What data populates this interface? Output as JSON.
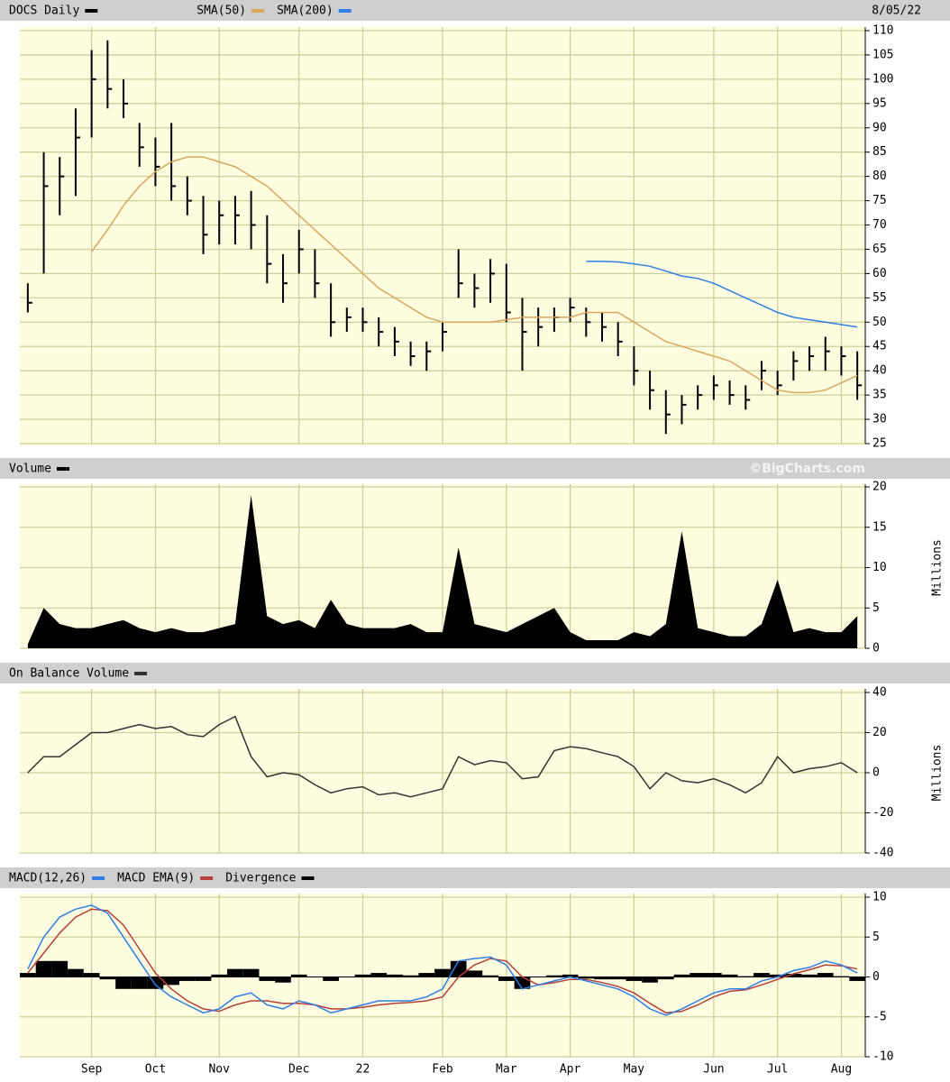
{
  "chart_data": [
    {
      "type": "ohlc",
      "date": "8/05/22",
      "series": [
        {
          "name": "DOCS Daily",
          "color": "#000000",
          "high": [
            58,
            85,
            84,
            94,
            106,
            108,
            100,
            91,
            88,
            91,
            80,
            76,
            75,
            76,
            77,
            72,
            64,
            69,
            65,
            58,
            53,
            53,
            51,
            49,
            46,
            46,
            50,
            65,
            60,
            63,
            62,
            55,
            53,
            53,
            55,
            53,
            52,
            50,
            45,
            40,
            36,
            35,
            37,
            39,
            38,
            37,
            42,
            40,
            44,
            45,
            47,
            45,
            44
          ],
          "low": [
            52,
            60,
            72,
            76,
            88,
            94,
            92,
            82,
            78,
            75,
            72,
            64,
            66,
            66,
            65,
            58,
            54,
            60,
            55,
            47,
            48,
            48,
            45,
            43,
            41,
            40,
            44,
            55,
            53,
            54,
            50,
            40,
            45,
            48,
            50,
            47,
            46,
            43,
            37,
            32,
            27,
            29,
            32,
            34,
            33,
            32,
            36,
            35,
            38,
            40,
            40,
            39,
            34
          ],
          "close": [
            54,
            78,
            80,
            88,
            100,
            98,
            95,
            86,
            82,
            78,
            75,
            68,
            72,
            72,
            70,
            62,
            58,
            65,
            58,
            50,
            51,
            50,
            48,
            46,
            43,
            44,
            48,
            58,
            57,
            60,
            52,
            48,
            49,
            51,
            53,
            50,
            49,
            46,
            40,
            36,
            31,
            33,
            35,
            37,
            35,
            34,
            40,
            37,
            42,
            43,
            44,
            43,
            37
          ]
        },
        {
          "name": "SMA(50)",
          "color": "#d9a65a",
          "values": [
            null,
            null,
            null,
            null,
            64.5,
            69,
            74,
            78,
            81,
            83,
            84,
            84,
            83,
            82,
            80,
            78,
            75,
            72,
            69,
            66,
            63,
            60,
            57,
            55,
            53,
            51,
            50,
            50,
            50,
            50,
            50.5,
            51,
            51,
            51,
            51,
            52,
            52,
            52,
            50,
            48,
            46,
            45,
            44,
            43,
            42,
            40,
            38,
            36,
            35.5,
            35.5,
            36,
            37.5,
            39
          ]
        },
        {
          "name": "SMA(200)",
          "color": "#2f7ee6",
          "values": [
            null,
            null,
            null,
            null,
            null,
            null,
            null,
            null,
            null,
            null,
            null,
            null,
            null,
            null,
            null,
            null,
            null,
            null,
            null,
            null,
            null,
            null,
            null,
            null,
            null,
            null,
            null,
            null,
            null,
            null,
            null,
            null,
            null,
            null,
            null,
            62.5,
            62.5,
            62.4,
            62,
            61.5,
            60.5,
            59.5,
            59,
            58,
            56.5,
            55,
            53.5,
            52,
            51,
            50.5,
            50,
            49.5,
            49
          ]
        }
      ],
      "ylim": [
        25,
        110
      ],
      "yticks": [
        25,
        30,
        35,
        40,
        45,
        50,
        55,
        60,
        65,
        70,
        75,
        80,
        85,
        90,
        95,
        100,
        105,
        110
      ],
      "grid": true
    },
    {
      "type": "area",
      "annotation": "©BigCharts.com",
      "y_label": "Millions",
      "series": [
        {
          "name": "Volume",
          "color": "#000000",
          "values": [
            0.5,
            5,
            3,
            2.5,
            2.5,
            3,
            3.5,
            2.5,
            2,
            2.5,
            2,
            2,
            2.5,
            3,
            19,
            4,
            3,
            3.5,
            2.5,
            6,
            3,
            2.5,
            2.5,
            2.5,
            3,
            2,
            2,
            12.5,
            3,
            2.5,
            2,
            3,
            4,
            5,
            2,
            1,
            1,
            1,
            2,
            1.5,
            3,
            14.5,
            2.5,
            2,
            1.5,
            1.5,
            3,
            8.5,
            2,
            2.5,
            2,
            2,
            4
          ]
        }
      ],
      "ylim": [
        0,
        20
      ],
      "yticks": [
        0,
        5,
        10,
        15,
        20
      ],
      "grid": true
    },
    {
      "type": "line",
      "y_label": "Millions",
      "series": [
        {
          "name": "On Balance Volume",
          "color": "#333333",
          "values": [
            0,
            8,
            8,
            14,
            20,
            20,
            22,
            24,
            22,
            23,
            19,
            18,
            24,
            28,
            8,
            -2,
            0,
            -1,
            -6,
            -10,
            -8,
            -7,
            -11,
            -10,
            -12,
            -10,
            -8,
            8,
            4,
            6,
            5,
            -3,
            -2,
            11,
            13,
            12,
            10,
            8,
            3,
            -8,
            0,
            -4,
            -5,
            -3,
            -6,
            -10,
            -5,
            8,
            0,
            2,
            3,
            5,
            0
          ]
        }
      ],
      "ylim": [
        -40,
        40
      ],
      "yticks": [
        -40,
        -20,
        0,
        20,
        40
      ],
      "grid": true
    },
    {
      "type": "macd",
      "categories": [
        null,
        null,
        null,
        null,
        "Sep",
        null,
        null,
        null,
        "Oct",
        null,
        null,
        null,
        "Nov",
        null,
        null,
        null,
        null,
        "Dec",
        null,
        null,
        null,
        "22",
        null,
        null,
        null,
        null,
        "Feb",
        null,
        null,
        null,
        "Mar",
        null,
        null,
        null,
        "Apr",
        null,
        null,
        null,
        "May",
        null,
        null,
        null,
        null,
        "Jun",
        null,
        null,
        null,
        "Jul",
        null,
        null,
        null,
        "Aug",
        null
      ],
      "series": [
        {
          "name": "MACD(12,26)",
          "color": "#2f7ee6",
          "values": [
            1,
            5,
            7.5,
            8.5,
            9,
            8,
            5,
            2,
            -1,
            -2.5,
            -3.5,
            -4.5,
            -4,
            -2.5,
            -2,
            -3.5,
            -4,
            -3,
            -3.5,
            -4.5,
            -4,
            -3.5,
            -3,
            -3,
            -3,
            -2.5,
            -1.5,
            2,
            2.3,
            2.5,
            1.5,
            -1.5,
            -1,
            -0.5,
            0,
            -0.5,
            -1,
            -1.5,
            -2.5,
            -4,
            -4.8,
            -4,
            -3,
            -2,
            -1.5,
            -1.5,
            -0.5,
            0,
            0.8,
            1.2,
            2,
            1.5,
            0.5
          ]
        },
        {
          "name": "MACD EMA(9)",
          "color": "#b5403a",
          "values": [
            0.5,
            3,
            5.5,
            7.5,
            8.5,
            8.3,
            6.5,
            3.5,
            0.5,
            -1.5,
            -3,
            -4,
            -4.3,
            -3.5,
            -3,
            -3,
            -3.3,
            -3.3,
            -3.5,
            -4,
            -4,
            -3.8,
            -3.5,
            -3.3,
            -3.2,
            -3,
            -2.5,
            0,
            1.5,
            2.3,
            2,
            0,
            -1,
            -0.7,
            -0.3,
            -0.3,
            -0.7,
            -1.2,
            -2,
            -3.3,
            -4.5,
            -4.3,
            -3.5,
            -2.5,
            -1.8,
            -1.6,
            -1,
            -0.3,
            0.4,
            0.9,
            1.5,
            1.4,
            1
          ]
        },
        {
          "name": "Divergence",
          "color": "#000000",
          "values": [
            0.5,
            2,
            2,
            1,
            0.5,
            -0.3,
            -1.5,
            -1.5,
            -1.5,
            -1,
            -0.5,
            -0.5,
            0.3,
            1,
            1,
            -0.5,
            -0.7,
            0.3,
            0,
            -0.5,
            0,
            0.3,
            0.5,
            0.3,
            0.2,
            0.5,
            1,
            2,
            0.8,
            0.2,
            -0.5,
            -1.5,
            0,
            0.2,
            0.3,
            -0.2,
            -0.3,
            -0.3,
            -0.5,
            -0.7,
            -0.3,
            0.3,
            0.5,
            0.5,
            0.3,
            0.1,
            0.5,
            0.3,
            0.4,
            0.3,
            0.5,
            0.1,
            -0.5
          ]
        }
      ],
      "ylim": [
        -10,
        10
      ],
      "yticks": [
        -10,
        -5,
        0,
        5,
        10
      ],
      "grid": true
    }
  ]
}
